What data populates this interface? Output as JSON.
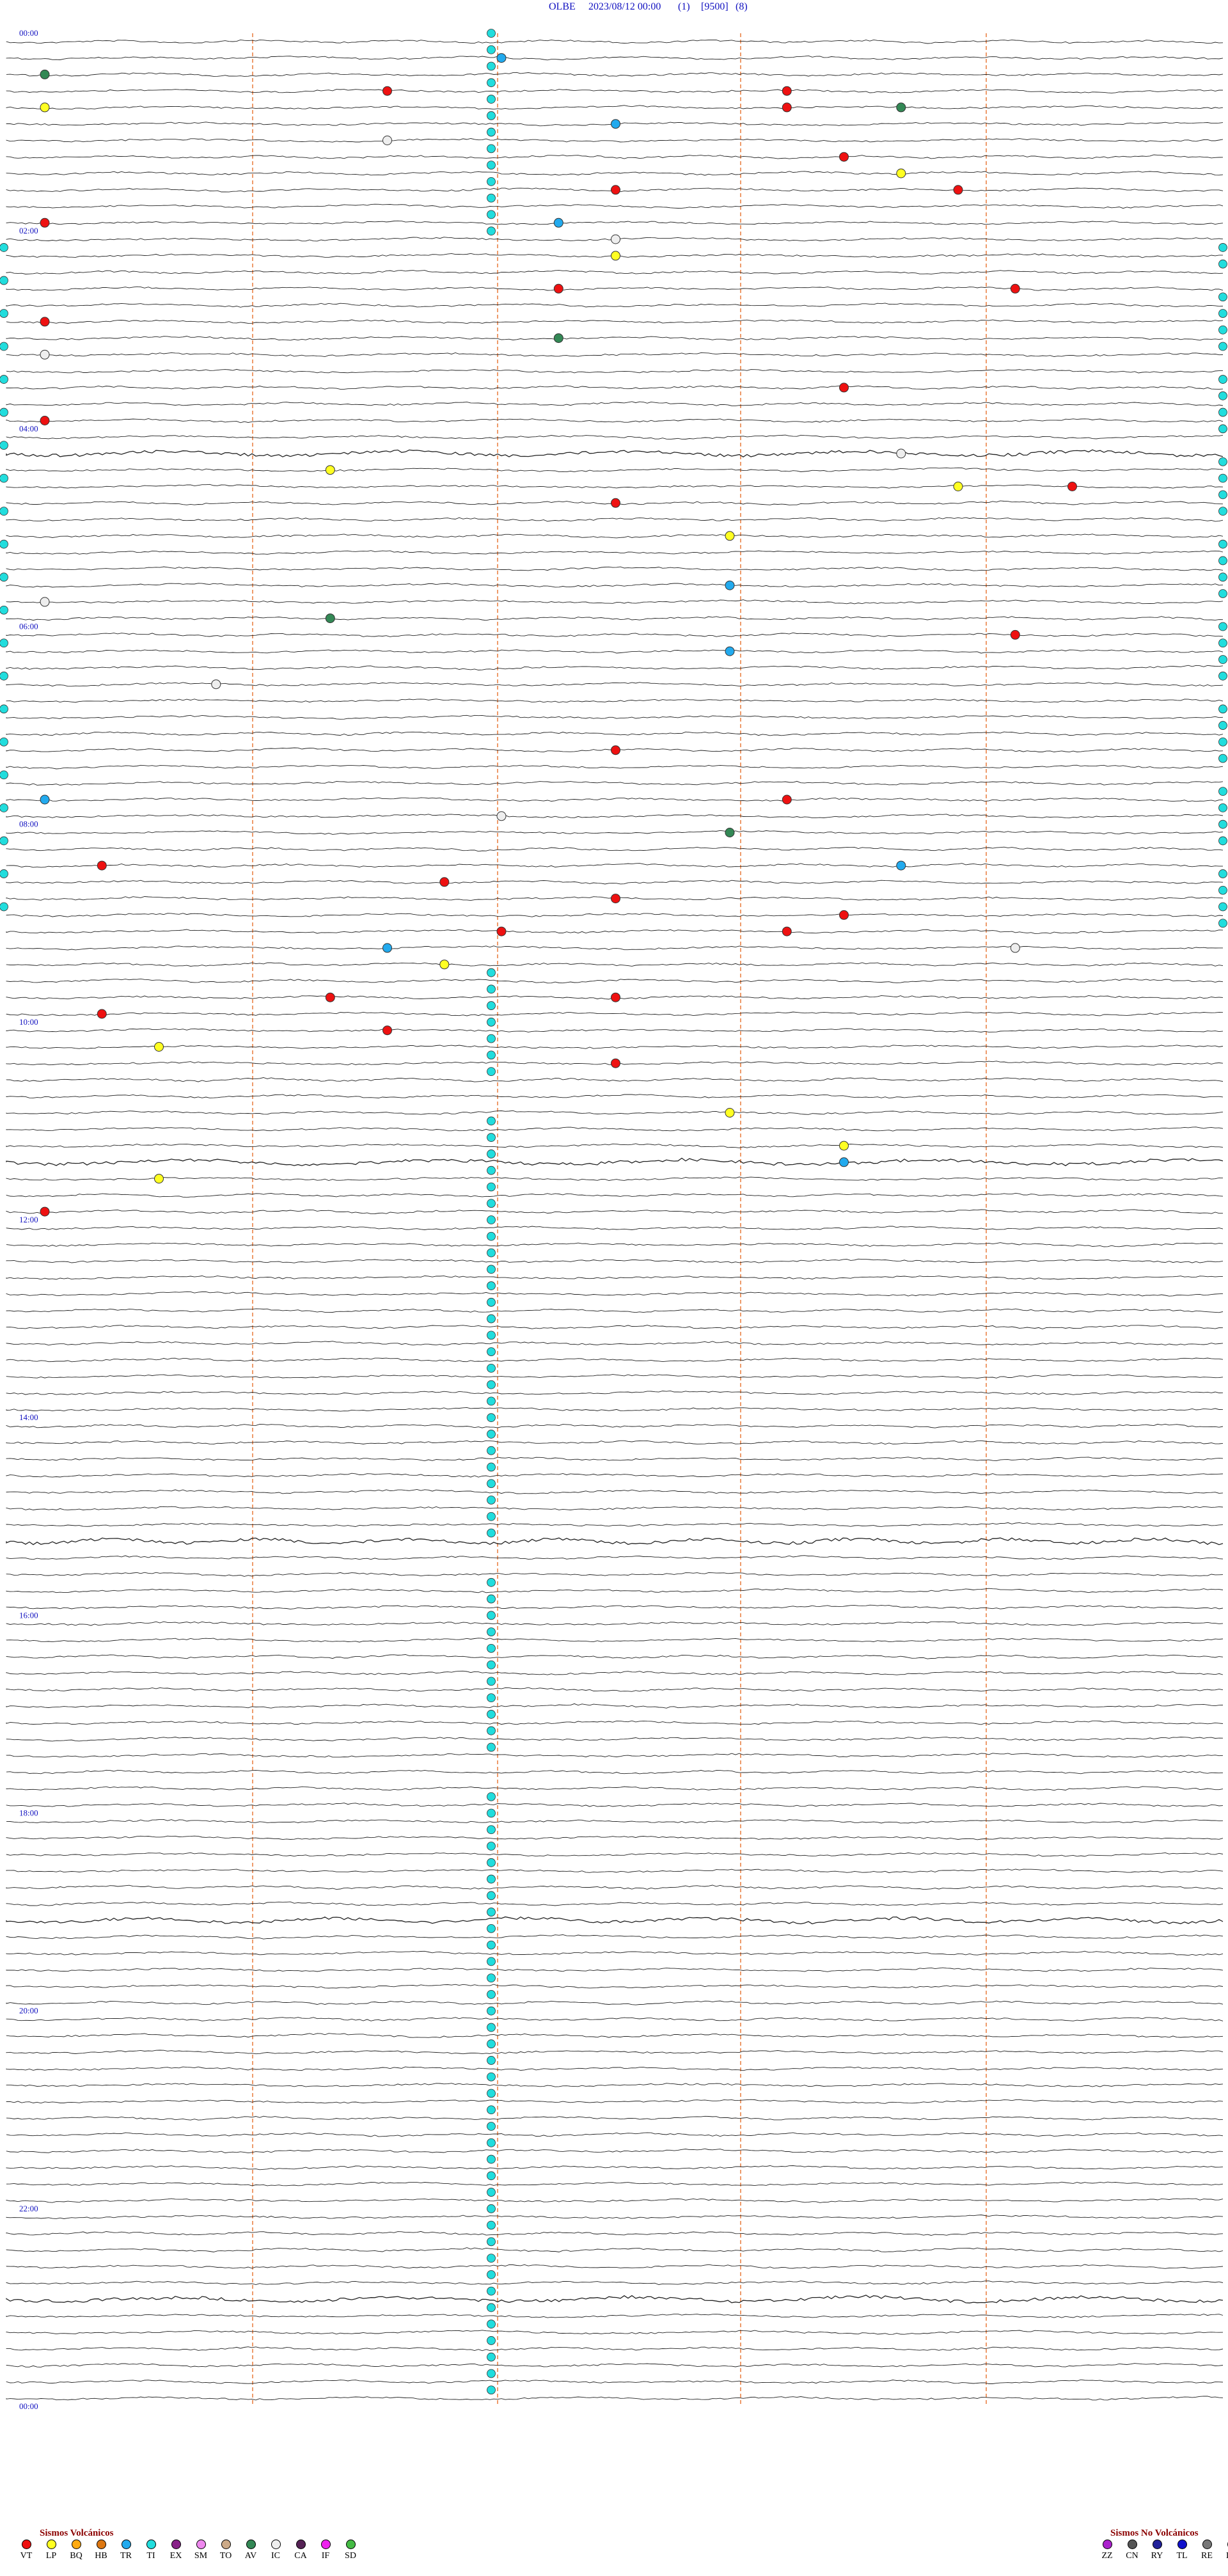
{
  "header": {
    "station": "OLBE",
    "datetime": "2023/08/12 00:00",
    "channel": "(1)",
    "gain": "[9500]",
    "scale": "(8)"
  },
  "chart_data": {
    "type": "seismogram",
    "hour_labels": [
      "00:00",
      "02:00",
      "04:00",
      "06:00",
      "08:00",
      "10:00",
      "12:00",
      "14:00",
      "16:00",
      "18:00",
      "20:00",
      "22:00",
      "00:00"
    ],
    "lines_per_hour": 6,
    "minutes_per_line": 20,
    "events": [
      {
        "t": "01:06",
        "cls": "VT"
      },
      {
        "t": "01:13",
        "cls": "VT"
      },
      {
        "t": "01:33",
        "cls": "VT"
      },
      {
        "t": "02:34",
        "cls": "VT"
      },
      {
        "t": "03:10",
        "cls": "VT"
      },
      {
        "t": "03:16",
        "cls": "VT"
      },
      {
        "t": "03:40",
        "cls": "VT"
      },
      {
        "t": "05:09",
        "cls": "VT"
      },
      {
        "t": "05:17",
        "cls": "VT"
      },
      {
        "t": "05:40",
        "cls": "VT"
      },
      {
        "t": "07:14",
        "cls": "VT"
      },
      {
        "t": "07:40",
        "cls": "VT"
      },
      {
        "t": "09:18",
        "cls": "VT"
      },
      {
        "t": "09:30",
        "cls": "VT"
      },
      {
        "t": "12:17",
        "cls": "VT"
      },
      {
        "t": "14:30",
        "cls": "VT"
      },
      {
        "t": "15:33",
        "cls": "VT"
      },
      {
        "t": "16:41",
        "cls": "VT"
      },
      {
        "t": "17:07",
        "cls": "VT"
      },
      {
        "t": "17:30",
        "cls": "VT"
      },
      {
        "t": "17:54",
        "cls": "VT"
      },
      {
        "t": "18:08",
        "cls": "VT"
      },
      {
        "t": "18:13",
        "cls": "VT"
      },
      {
        "t": "19:25",
        "cls": "VT"
      },
      {
        "t": "19:30",
        "cls": "VT"
      },
      {
        "t": "19:41",
        "cls": "VT"
      },
      {
        "t": "20:06",
        "cls": "VT"
      },
      {
        "t": "20:50",
        "cls": "VT"
      },
      {
        "t": "23:40",
        "cls": "VT"
      },
      {
        "t": "01:20",
        "cls": "LP"
      },
      {
        "t": "02:55",
        "cls": "LP"
      },
      {
        "t": "04:30",
        "cls": "LP"
      },
      {
        "t": "08:45",
        "cls": "LP"
      },
      {
        "t": "09:16",
        "cls": "LP"
      },
      {
        "t": "10:12",
        "cls": "LP"
      },
      {
        "t": "18:47",
        "cls": "LP"
      },
      {
        "t": "20:22",
        "cls": "LP"
      },
      {
        "t": "21:52",
        "cls": "LP"
      },
      {
        "t": "22:34",
        "cls": "LP"
      },
      {
        "t": "23:02",
        "cls": "LP"
      },
      {
        "t": "00:28",
        "cls": "TR"
      },
      {
        "t": "01:50",
        "cls": "TR"
      },
      {
        "t": "03:49",
        "cls": "TR"
      },
      {
        "t": "11:12",
        "cls": "TR"
      },
      {
        "t": "12:32",
        "cls": "TR"
      },
      {
        "t": "15:20",
        "cls": "TR"
      },
      {
        "t": "16:55",
        "cls": "TR"
      },
      {
        "t": "18:26",
        "cls": "TR"
      },
      {
        "t": "22:54",
        "cls": "TR"
      },
      {
        "t": "00:40",
        "cls": "AV"
      },
      {
        "t": "01:35",
        "cls": "AV"
      },
      {
        "t": "06:09",
        "cls": "AV"
      },
      {
        "t": "11:45",
        "cls": "AV"
      },
      {
        "t": "16:12",
        "cls": "AV"
      },
      {
        "t": "02:06",
        "cls": "IC"
      },
      {
        "t": "04:10",
        "cls": "IC"
      },
      {
        "t": "06:20",
        "cls": "IC"
      },
      {
        "t": "08:35",
        "cls": "IC"
      },
      {
        "t": "11:20",
        "cls": "IC"
      },
      {
        "t": "13:03",
        "cls": "IC"
      },
      {
        "t": "15:48",
        "cls": "IC"
      },
      {
        "t": "18:37",
        "cls": "IC"
      }
    ]
  },
  "legend_volcanic": {
    "title": "Sismos Volcánicos",
    "items": [
      {
        "code": "VT",
        "color": "#ee1111"
      },
      {
        "code": "LP",
        "color": "#ffff22"
      },
      {
        "code": "BQ",
        "color": "#ffaa11"
      },
      {
        "code": "HB",
        "color": "#dd7711"
      },
      {
        "code": "TR",
        "color": "#22aaee"
      },
      {
        "code": "TI",
        "color": "#22dddd"
      },
      {
        "code": "EX",
        "color": "#882288"
      },
      {
        "code": "SM",
        "color": "#ee88ee"
      },
      {
        "code": "TO",
        "color": "#ccaa88"
      },
      {
        "code": "AV",
        "color": "#338855"
      },
      {
        "code": "IC",
        "color": "#eeeeee"
      },
      {
        "code": "CA",
        "color": "#552255"
      },
      {
        "code": "IF",
        "color": "#ee22ee"
      },
      {
        "code": "SD",
        "color": "#44bb44"
      }
    ]
  },
  "legend_nonvolcanic": {
    "title": "Sismos No Volcánicos",
    "items": [
      {
        "code": "ZZ",
        "color": "#aa22cc"
      },
      {
        "code": "CN",
        "color": "#555555"
      },
      {
        "code": "RY",
        "color": "#222299"
      },
      {
        "code": "TL",
        "color": "#1111cc"
      },
      {
        "code": "RE",
        "color": "#777777"
      },
      {
        "code": "DS",
        "color": "#bb9977"
      }
    ]
  }
}
